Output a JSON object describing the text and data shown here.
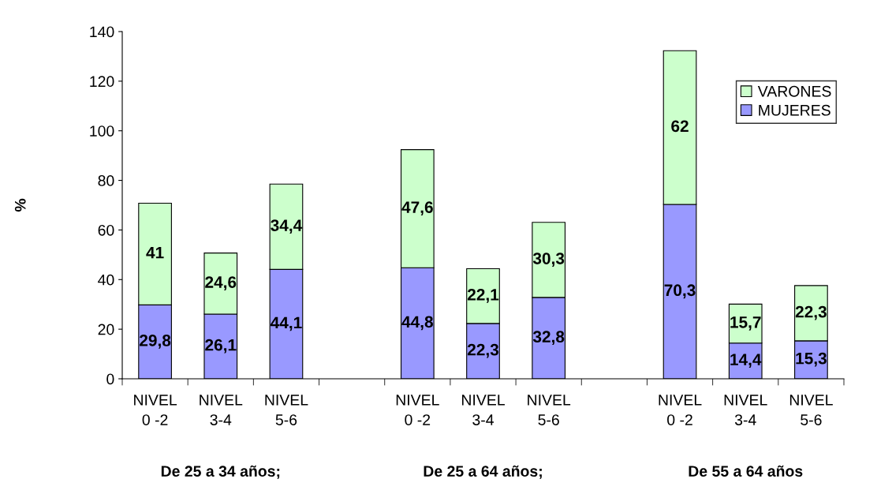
{
  "chart_data": {
    "type": "bar",
    "stacked": true,
    "ylabel": "%",
    "categories": [
      "NIVEL\n0 -2",
      "NIVEL\n3-4",
      "NIVEL\n5-6",
      null,
      "NIVEL\n0 -2",
      "NIVEL\n3-4",
      "NIVEL\n5-6",
      null,
      "NIVEL\n0 -2",
      "NIVEL\n3-4",
      "NIVEL\n5-6"
    ],
    "series": [
      {
        "name": "MUJERES",
        "color": "#9999ff",
        "values": [
          29.8,
          26.1,
          44.1,
          null,
          44.8,
          22.3,
          32.8,
          null,
          70.3,
          14.4,
          15.3
        ],
        "value_labels": [
          "29,8",
          "26,1",
          "44,1",
          null,
          "44,8",
          "22,3",
          "32,8",
          null,
          "70,3",
          "14,4",
          "15,3"
        ]
      },
      {
        "name": "VARONES",
        "color": "#ccffcc",
        "values": [
          41,
          24.6,
          34.4,
          null,
          47.6,
          22.1,
          30.3,
          null,
          62,
          15.7,
          22.3
        ],
        "value_labels": [
          "41",
          "24,6",
          "34,4",
          null,
          "47,6",
          "22,1",
          "30,3",
          null,
          "62",
          "15,7",
          "22,3"
        ]
      }
    ],
    "ylim": [
      0,
      140
    ],
    "yticks": [
      0,
      20,
      40,
      60,
      80,
      100,
      120,
      140
    ],
    "grid": false,
    "legend": "top right",
    "annotations": [
      "De 25 a 34 años;",
      "De 25 a 64 años;",
      "De 55 a 64 años"
    ]
  }
}
